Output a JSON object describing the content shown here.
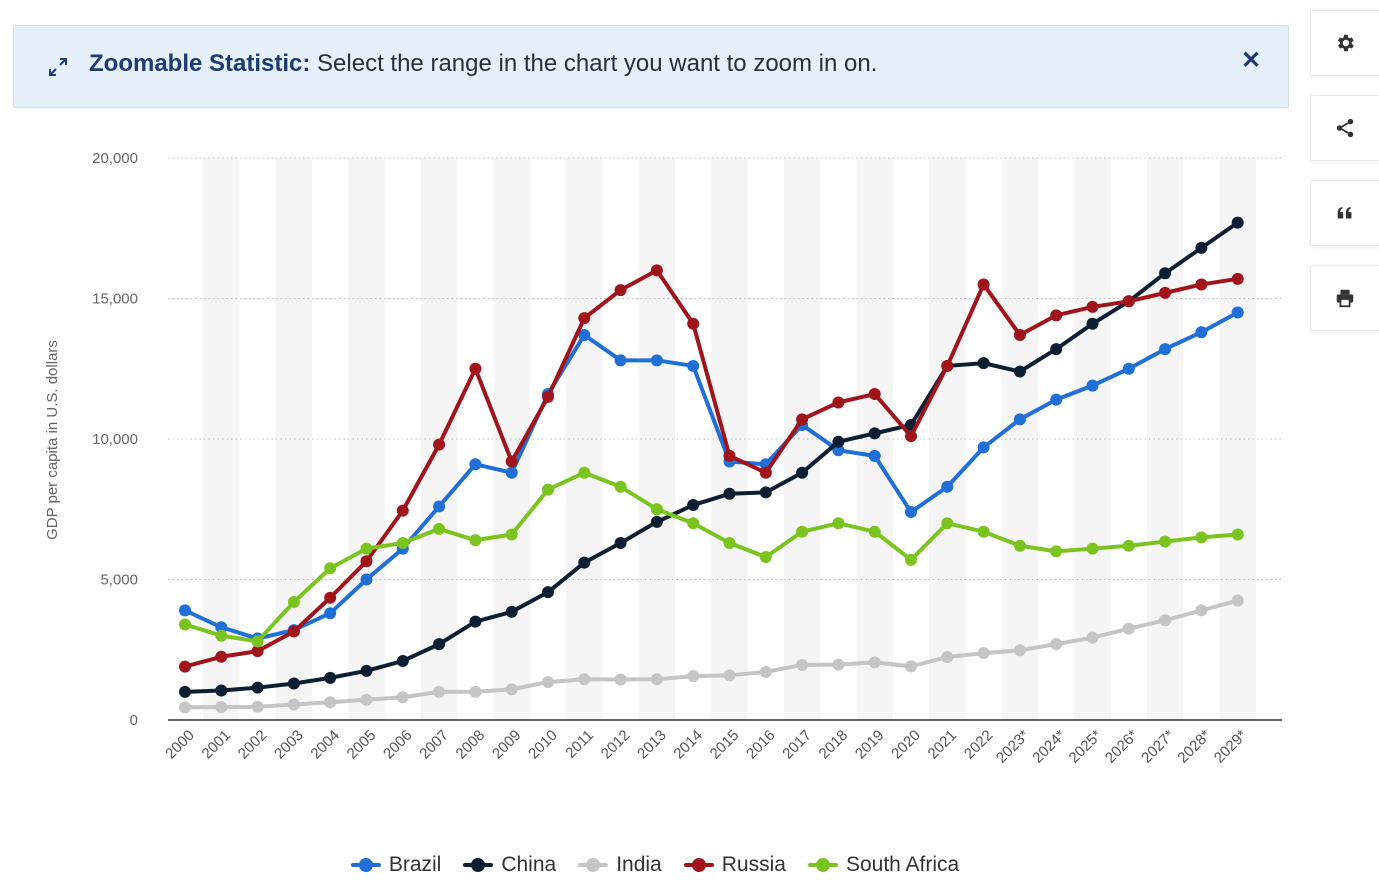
{
  "banner": {
    "title": "Zoomable Statistic:",
    "text": "Select the range in the chart you want to zoom in on."
  },
  "toolbar": [
    "gear-icon",
    "share-icon",
    "quote-icon",
    "print-icon"
  ],
  "chart_data": {
    "type": "line",
    "ylabel": "GDP per capita in U.S. dollars",
    "ylim": [
      0,
      20000
    ],
    "yticks": [
      0,
      5000,
      10000,
      15000,
      20000
    ],
    "ytick_labels": [
      "0",
      "5,000",
      "10,000",
      "15,000",
      "20,000"
    ],
    "grid": "horizontal dotted",
    "legend": "bottom",
    "categories": [
      "2000",
      "2001",
      "2002",
      "2003",
      "2004",
      "2005",
      "2006",
      "2007",
      "2008",
      "2009",
      "2010",
      "2011",
      "2012",
      "2013",
      "2014",
      "2015",
      "2016",
      "2017",
      "2018",
      "2019",
      "2020",
      "2021",
      "2022",
      "2023*",
      "2024*",
      "2025*",
      "2026*",
      "2027*",
      "2028*",
      "2029*"
    ],
    "series": [
      {
        "name": "Brazil",
        "color": "#1f6fd6",
        "values": [
          3900,
          3300,
          2900,
          3200,
          3800,
          5000,
          6100,
          7600,
          9100,
          8800,
          11600,
          13700,
          12800,
          12800,
          12600,
          9200,
          9100,
          10500,
          9600,
          9400,
          7400,
          8300,
          9700,
          10700,
          11400,
          11900,
          12500,
          13200,
          13800,
          14500
        ]
      },
      {
        "name": "China",
        "color": "#0e1f33",
        "values": [
          1000,
          1050,
          1150,
          1300,
          1500,
          1750,
          2100,
          2700,
          3500,
          3850,
          4550,
          5600,
          6300,
          7050,
          7650,
          8050,
          8100,
          8800,
          9900,
          10200,
          10500,
          12600,
          12700,
          12400,
          13200,
          14100,
          14900,
          15900,
          16800,
          17700
        ]
      },
      {
        "name": "India",
        "color": "#c5c5c5",
        "values": [
          450,
          460,
          470,
          550,
          630,
          720,
          810,
          1000,
          1000,
          1090,
          1350,
          1450,
          1440,
          1450,
          1560,
          1590,
          1710,
          1960,
          1970,
          2050,
          1910,
          2240,
          2380,
          2480,
          2700,
          2930,
          3250,
          3550,
          3900,
          4250
        ]
      },
      {
        "name": "Russia",
        "color": "#a1141c",
        "values": [
          1900,
          2250,
          2450,
          3150,
          4350,
          5650,
          7450,
          9800,
          12500,
          9200,
          11500,
          14300,
          15300,
          16000,
          14100,
          9400,
          8800,
          10700,
          11300,
          11600,
          10100,
          12600,
          15500,
          13700,
          14400,
          14700,
          14900,
          15200,
          15500,
          15700
        ]
      },
      {
        "name": "South Africa",
        "color": "#7bc41f",
        "values": [
          3400,
          3000,
          2800,
          4200,
          5400,
          6100,
          6300,
          6800,
          6400,
          6600,
          8200,
          8800,
          8300,
          7500,
          7000,
          6300,
          5800,
          6700,
          7000,
          6700,
          5700,
          7000,
          6700,
          6200,
          6000,
          6100,
          6200,
          6350,
          6500,
          6600
        ]
      }
    ]
  }
}
